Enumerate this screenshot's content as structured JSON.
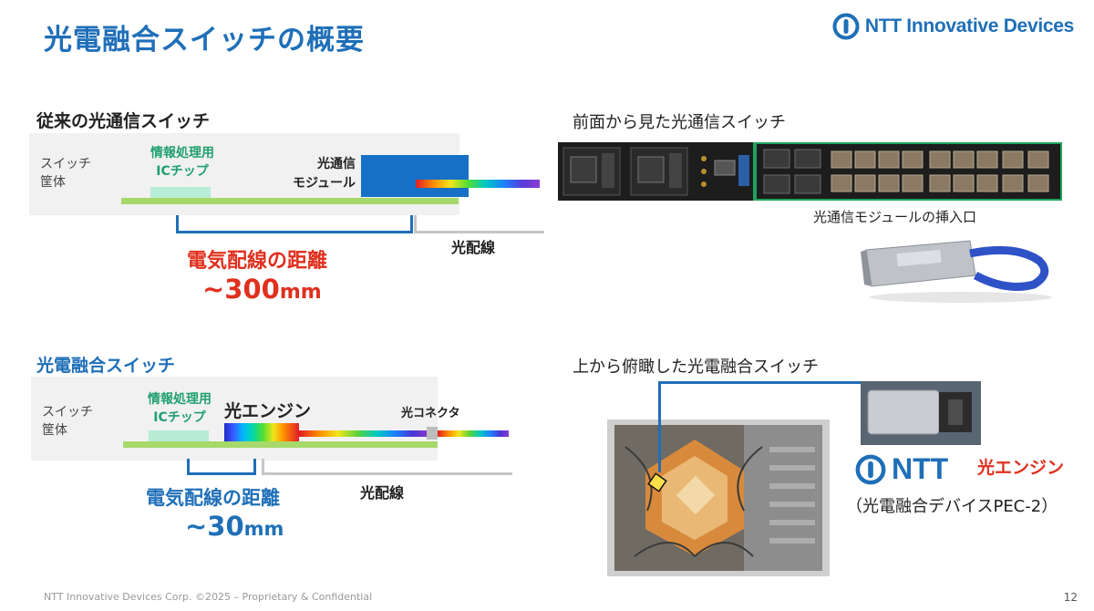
{
  "title": "光電融合スイッチの概要",
  "logo": {
    "text": "NTT Innovative Devices"
  },
  "conventional": {
    "heading": "従来の光通信スイッチ",
    "chassis": "スイッチ\n筐体",
    "chip_label": "情報処理用\nICチップ",
    "module_label": "光通信\nモジュール",
    "fiber_label": "光配線",
    "distance_label": "電気配線の距離",
    "distance_value": "~300",
    "distance_unit": "mm"
  },
  "cpo": {
    "heading": "光電融合スイッチ",
    "chassis": "スイッチ\n筐体",
    "chip_label": "情報処理用\nICチップ",
    "engine_label": "光エンジン",
    "connector_label": "光コネクタ",
    "fiber_label": "光配線",
    "distance_label": "電気配線の距離",
    "distance_value": "~30",
    "distance_unit": "mm"
  },
  "front_view": {
    "caption": "前面から見た光通信スイッチ",
    "port_label": "光通信モジュールの挿入口"
  },
  "top_view": {
    "caption": "上から俯瞰した光電融合スイッチ",
    "ntt_logo": "NTT",
    "engine_label": "光エンジン",
    "device_label": "（光電融合デバイスPEC-2）"
  },
  "footer": "NTT Innovative Devices Corp. ©2025 – Proprietary & Confidential",
  "page_number": "12",
  "colors": {
    "brand_blue": "#1f6fb8",
    "accent_red": "#e0301e",
    "green": "#22a070"
  }
}
